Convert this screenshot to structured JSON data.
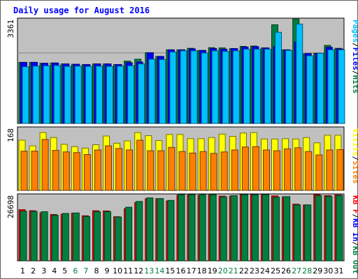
{
  "chart_data": {
    "type": "bar",
    "title": "Daily usage for August 2016",
    "categories": [
      "1",
      "2",
      "3",
      "4",
      "5",
      "6",
      "7",
      "8",
      "9",
      "10",
      "11",
      "12",
      "13",
      "14",
      "15",
      "16",
      "17",
      "18",
      "19",
      "20",
      "21",
      "22",
      "23",
      "24",
      "25",
      "26",
      "27",
      "28",
      "29",
      "30",
      "31"
    ],
    "weekend_days": [
      "6",
      "7",
      "13",
      "14",
      "20",
      "21",
      "27",
      "28"
    ],
    "panels": [
      {
        "id": "hits",
        "ymax_label": "3361",
        "ymax": 3361,
        "side_label": [
          {
            "text": "Pages",
            "color": "#00c0ff"
          },
          {
            "text": "/",
            "color": "#000000"
          },
          {
            "text": "Files",
            "color": "#0000ff"
          },
          {
            "text": "/",
            "color": "#000000"
          },
          {
            "text": "Hits",
            "color": "#008040"
          }
        ],
        "series": [
          {
            "name": "Hits",
            "color": "#008040",
            "values": [
              1950,
              1950,
              1920,
              1930,
              1900,
              1890,
              1880,
              1900,
              1900,
              1880,
              1990,
              2050,
              2260,
              2140,
              2350,
              2350,
              2400,
              2330,
              2420,
              2410,
              2390,
              2460,
              2470,
              2410,
              3150,
              2350,
              3331,
              2220,
              2240,
              2490,
              2400
            ]
          },
          {
            "name": "Files",
            "color": "#0000ff",
            "values": [
              1950,
              1950,
              1920,
              1930,
              1900,
              1890,
              1880,
              1900,
              1900,
              1880,
              1940,
              1960,
              2260,
              2140,
              2350,
              2350,
              2380,
              2330,
              2390,
              2370,
              2390,
              2440,
              2450,
              2410,
              2450,
              2350,
              2600,
              2230,
              2240,
              2430,
              2380
            ]
          },
          {
            "name": "Pages",
            "color": "#00c0ff",
            "values": [
              1810,
              1830,
              1840,
              1850,
              1820,
              1830,
              1820,
              1830,
              1820,
              1830,
              1840,
              1900,
              2050,
              2040,
              2280,
              2320,
              2320,
              2250,
              2320,
              2300,
              2320,
              2370,
              2370,
              2370,
              2910,
              2330,
              3170,
              2160,
              2240,
              2350,
              2350
            ]
          }
        ]
      },
      {
        "id": "visits",
        "ymax_label": "168",
        "ymax": 168,
        "side_label": [
          {
            "text": "Visits",
            "color": "#ffff00"
          },
          {
            "text": "/",
            "color": "#000000"
          },
          {
            "text": "Sites",
            "color": "#ff8000"
          }
        ],
        "series": [
          {
            "name": "Visits",
            "color": "#ffff00",
            "values": [
              133,
              118,
              153,
              140,
              122,
              116,
              112,
              121,
              144,
              125,
              131,
              153,
              145,
              132,
              148,
              148,
              137,
              137,
              140,
              149,
              143,
              152,
              153,
              136,
              136,
              137,
              136,
              140,
              126,
              146,
              146
            ]
          },
          {
            "name": "Sites",
            "color": "#ff8000",
            "values": [
              104,
              104,
              135,
              106,
              102,
              100,
              95,
              107,
              118,
              111,
              107,
              133,
              105,
              105,
              114,
              103,
              99,
              103,
              98,
              102,
              107,
              115,
              116,
              107,
              105,
              110,
              113,
              103,
              94,
              107,
              108
            ]
          }
        ]
      },
      {
        "id": "kbytes",
        "ymax_label": "26698",
        "ymax": 26698,
        "side_label": [
          {
            "text": "KB F",
            "color": "#ff0000"
          },
          {
            "text": "/",
            "color": "#000000"
          },
          {
            "text": "KB In",
            "color": "#0000ff"
          },
          {
            "text": "/",
            "color": "#000000"
          },
          {
            "text": "KB Out",
            "color": "#008040"
          }
        ],
        "series": [
          {
            "name": "KB F",
            "color": "#ff0000",
            "values": [
              20400,
              20000,
              19200,
              18500,
              18600,
              19000,
              18000,
              20000,
              19900,
              17600,
              20800,
              23300,
              24800,
              24800,
              23900,
              26200,
              26300,
              26100,
              26300,
              25800,
              25800,
              27000,
              27000,
              26800,
              25900,
              25500,
              22600,
              22300,
              26800,
              26000,
              26300
            ]
          },
          {
            "name": "KB Out",
            "color": "#008040",
            "values": [
              19800,
              19700,
              19600,
              18200,
              18900,
              19100,
              17700,
              19600,
              19600,
              17500,
              21400,
              23700,
              25100,
              24800,
              24100,
              26600,
              26700,
              26400,
              26500,
              25500,
              26000,
              26500,
              26400,
              27000,
              25400,
              25600,
              22300,
              22300,
              26000,
              25700,
              26100
            ]
          }
        ]
      }
    ]
  }
}
